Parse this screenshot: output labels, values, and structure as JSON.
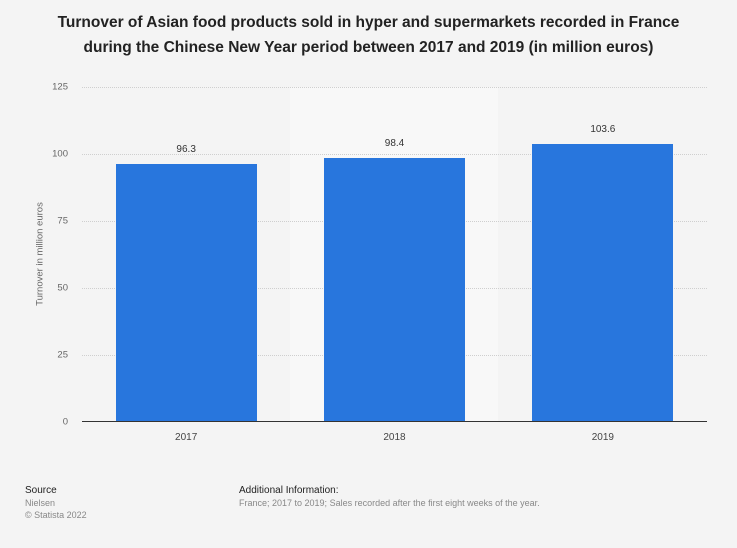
{
  "chart_data": {
    "type": "bar",
    "title": "Turnover of Asian food products sold in hyper and supermarkets recorded in France during the Chinese New Year period between 2017 and 2019 (in million euros)",
    "title_lines": [
      "Turnover of Asian food products sold in hyper and supermarkets recorded in France",
      "during the Chinese New Year period between 2017 and 2019 (in million euros)"
    ],
    "categories": [
      "2017",
      "2018",
      "2019"
    ],
    "values": [
      96.3,
      98.4,
      103.6
    ],
    "value_labels": [
      "96.3",
      "98.4",
      "103.6"
    ],
    "xlabel": "",
    "ylabel": "Turnover in million euros",
    "ylim": [
      0,
      125
    ],
    "yticks": [
      "0",
      "25",
      "50",
      "75",
      "100",
      "125"
    ],
    "grid": true,
    "legend": null,
    "bar_color": "#2876dd"
  },
  "footer": {
    "source_heading": "Source",
    "source_name": "Nielsen",
    "copyright": "© Statista 2022",
    "additional_heading": "Additional Information:",
    "additional_text": "France; 2017 to 2019; Sales recorded after the first eight weeks of the year."
  }
}
